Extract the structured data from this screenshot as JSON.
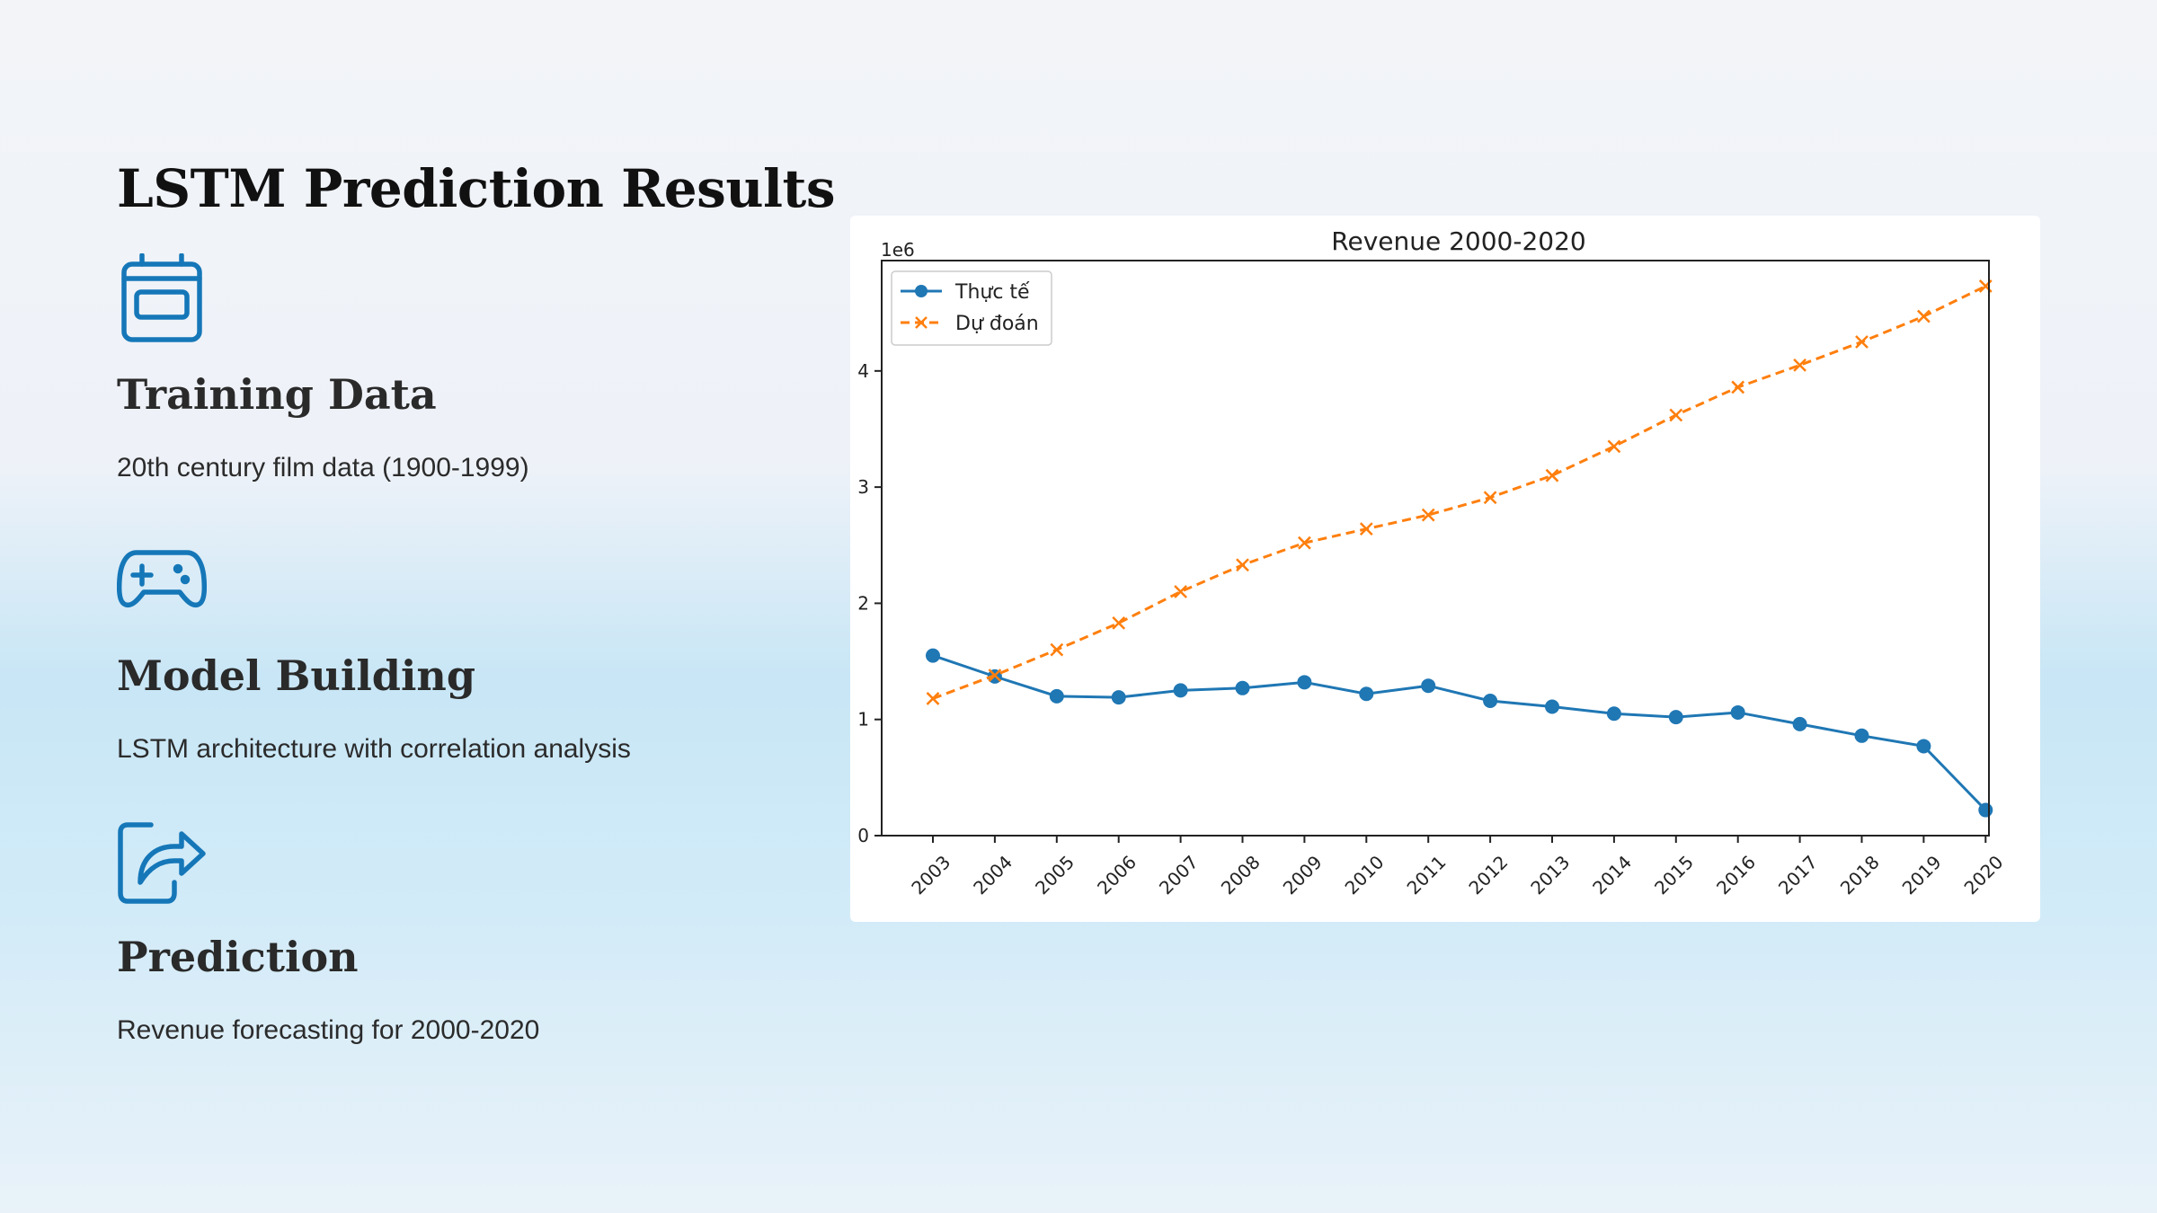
{
  "page": {
    "title": "LSTM Prediction Results"
  },
  "features": [
    {
      "icon": "calendar-icon",
      "heading": "Training Data",
      "text": "20th century film data (1900-1999)"
    },
    {
      "icon": "gamepad-icon",
      "heading": "Model Building",
      "text": "LSTM architecture with correlation analysis"
    },
    {
      "icon": "share-arrow-icon",
      "heading": "Prediction",
      "text": "Revenue forecasting for 2000-2020"
    }
  ],
  "colors": {
    "accent": "#1577b8",
    "actual": "#1f77b4",
    "predicted": "#ff7f0e"
  },
  "chart_data": {
    "type": "line",
    "title": "Revenue 2000-2020",
    "scale_note": "1e6",
    "x": [
      "2003",
      "2004",
      "2005",
      "2006",
      "2007",
      "2008",
      "2009",
      "2010",
      "2011",
      "2012",
      "2013",
      "2014",
      "2015",
      "2016",
      "2017",
      "2018",
      "2019",
      "2020"
    ],
    "series": [
      {
        "name": "Thực tế",
        "style": "solid-circle",
        "values": [
          1.55,
          1.37,
          1.2,
          1.19,
          1.25,
          1.27,
          1.32,
          1.22,
          1.29,
          1.16,
          1.11,
          1.05,
          1.02,
          1.06,
          0.96,
          0.86,
          0.77,
          0.22
        ]
      },
      {
        "name": "Dự đoán",
        "style": "dashed-x",
        "values": [
          1.18,
          1.38,
          1.6,
          1.83,
          2.1,
          2.33,
          2.52,
          2.64,
          2.76,
          2.91,
          3.1,
          3.35,
          3.62,
          3.86,
          4.05,
          4.25,
          4.47,
          4.73
        ]
      }
    ],
    "yticks": [
      0,
      1,
      2,
      3,
      4
    ],
    "ylim": [
      0,
      4.95
    ],
    "legend_position": "upper-left",
    "grid": false
  }
}
